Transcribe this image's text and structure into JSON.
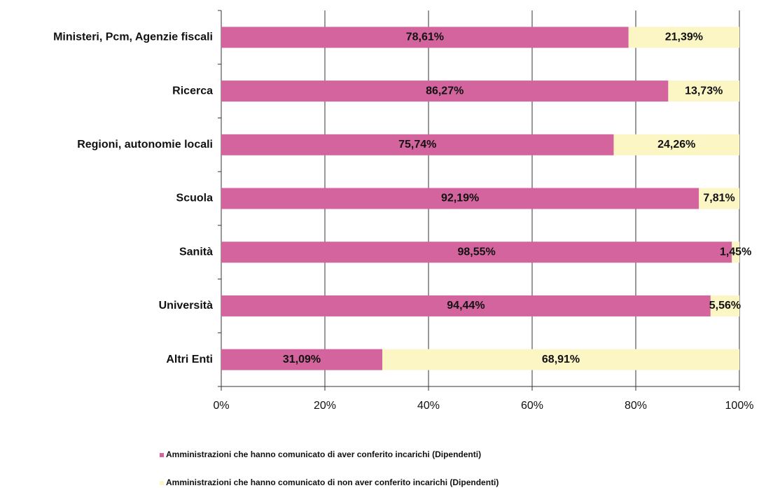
{
  "chart_data": {
    "type": "stacked_barh",
    "categories": [
      "Ministeri, Pcm, Agenzie fiscali",
      "Ricerca",
      "Regioni, autonomie locali",
      "Scuola",
      "Sanità",
      "Università",
      "Altri Enti"
    ],
    "series": [
      {
        "name": "Amministrazioni che hanno comunicato di aver conferito incarichi (Dipendenti)",
        "color": "#d4649d",
        "values": [
          78.61,
          86.27,
          75.74,
          92.19,
          98.55,
          94.44,
          31.09
        ],
        "value_labels": [
          "78,61%",
          "86,27%",
          "75,74%",
          "92,19%",
          "98,55%",
          "94,44%",
          "31,09%"
        ]
      },
      {
        "name": "Amministrazioni che hanno comunicato di non aver conferito incarichi (Dipendenti)",
        "color": "#fbf6c4",
        "values": [
          21.39,
          13.73,
          24.26,
          7.81,
          1.45,
          5.56,
          68.91
        ],
        "value_labels": [
          "21,39%",
          "13,73%",
          "24,26%",
          "7,81%",
          "1,45%",
          "5,56%",
          "68,91%"
        ]
      }
    ],
    "xlim": [
      0,
      100
    ],
    "xticks": [
      {
        "value": 0,
        "label": "0%"
      },
      {
        "value": 20,
        "label": "20%"
      },
      {
        "value": 40,
        "label": "40%"
      },
      {
        "value": 60,
        "label": "60%"
      },
      {
        "value": 80,
        "label": "80%"
      },
      {
        "value": 100,
        "label": "100%"
      }
    ],
    "grid": true
  }
}
